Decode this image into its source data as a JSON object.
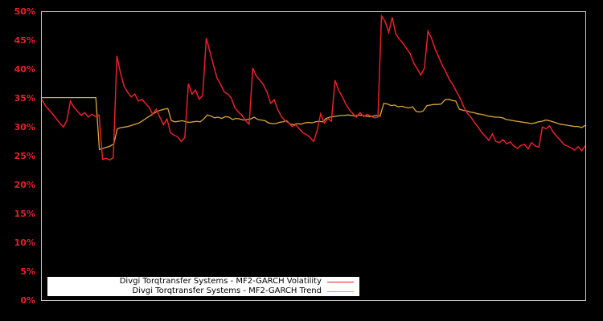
{
  "chart_data": {
    "type": "line",
    "title": "",
    "xlabel": "",
    "ylabel": "",
    "ylim": [
      0,
      50
    ],
    "yticks": [
      "0%",
      "5%",
      "10%",
      "15%",
      "20%",
      "25%",
      "30%",
      "35%",
      "40%",
      "45%",
      "50%"
    ],
    "grid": false,
    "legend_position": "lower-left",
    "colors": {
      "background": "#000000",
      "axis": "#c8c8c8",
      "tick_label": "#e8202a",
      "volatility": "#e8202a",
      "trend": "#d9a933"
    },
    "series": [
      {
        "name": "Divgi Torqtransfer Systems - MF2-GARCH Volatility",
        "color": "#e8202a",
        "values": [
          34.9,
          33.8,
          33.1,
          32.4,
          31.6,
          30.8,
          30.1,
          31.2,
          34.6,
          33.5,
          32.8,
          32.1,
          32.6,
          31.8,
          32.3,
          31.9,
          32.2,
          24.5,
          24.7,
          24.4,
          24.8,
          42.4,
          39.5,
          37.2,
          36.1,
          35.3,
          35.8,
          34.6,
          34.9,
          34.2,
          33.5,
          32.3,
          33.2,
          31.8,
          30.5,
          31.5,
          29.1,
          28.7,
          28.4,
          27.6,
          28.3,
          37.6,
          35.8,
          36.5,
          34.9,
          35.6,
          45.5,
          43.2,
          40.8,
          38.6,
          37.5,
          36.2,
          35.8,
          35.1,
          33.4,
          32.7,
          32.1,
          31.2,
          30.6,
          40.3,
          38.9,
          38.2,
          37.4,
          36.1,
          34.2,
          34.8,
          33.1,
          31.9,
          31.2,
          30.8,
          30.2,
          30.5,
          29.8,
          29.1,
          28.8,
          28.3,
          27.6,
          29.5,
          32.4,
          30.8,
          31.6,
          31.1,
          38.2,
          36.5,
          35.4,
          34.1,
          33.1,
          32.4,
          31.8,
          32.6,
          31.9,
          32.3,
          32.0,
          31.7,
          31.8,
          49.3,
          48.4,
          46.5,
          49.1,
          46.2,
          45.3,
          44.6,
          43.7,
          42.8,
          41.2,
          40.2,
          39.1,
          40.3,
          46.7,
          45.4,
          43.6,
          42.2,
          40.8,
          39.6,
          38.3,
          37.4,
          36.2,
          35.1,
          33.6,
          32.5,
          31.8,
          30.9,
          30.1,
          29.2,
          28.5,
          27.8,
          28.9,
          27.6,
          27.4,
          27.9,
          27.2,
          27.5,
          26.8,
          26.4,
          26.9,
          27.1,
          26.3,
          27.4,
          26.8,
          26.6,
          30.1,
          29.8,
          30.3,
          29.2,
          28.5,
          27.8,
          27.1,
          26.8,
          26.5,
          26.1,
          26.7,
          26.0,
          26.9
        ]
      },
      {
        "name": "Divgi Torqtransfer Systems - MF2-GARCH Trend",
        "color": "#d9a933",
        "values": [
          35.2,
          35.2,
          35.2,
          35.2,
          35.2,
          35.2,
          35.2,
          35.2,
          35.2,
          35.2,
          35.2,
          35.2,
          35.2,
          35.2,
          35.2,
          35.2,
          26.2,
          26.4,
          26.6,
          26.8,
          27.2,
          29.8,
          30.0,
          30.1,
          30.2,
          30.4,
          30.6,
          30.8,
          31.2,
          31.6,
          32.0,
          32.4,
          32.8,
          33.0,
          33.2,
          33.3,
          31.2,
          31.0,
          31.1,
          31.2,
          31.0,
          30.9,
          31.0,
          31.1,
          31.0,
          31.5,
          32.2,
          32.0,
          31.7,
          31.8,
          31.6,
          31.9,
          31.8,
          31.4,
          31.6,
          31.5,
          31.3,
          31.4,
          31.5,
          31.8,
          31.4,
          31.3,
          31.2,
          30.8,
          30.7,
          30.7,
          30.9,
          31.0,
          31.2,
          30.6,
          30.5,
          30.7,
          30.6,
          30.8,
          30.9,
          30.8,
          31.0,
          31.1,
          31.0,
          31.6,
          31.8,
          31.9,
          32.0,
          32.1,
          32.1,
          32.2,
          32.1,
          32.0,
          32.2,
          32.1,
          32.0,
          31.9,
          32.0,
          32.1,
          32.0,
          34.2,
          34.1,
          33.8,
          33.9,
          33.6,
          33.7,
          33.5,
          33.4,
          33.6,
          32.8,
          32.7,
          32.9,
          33.8,
          33.9,
          34.0,
          34.0,
          34.1,
          34.8,
          34.9,
          34.7,
          34.6,
          33.2,
          33.0,
          32.9,
          32.7,
          32.6,
          32.4,
          32.3,
          32.2,
          32.0,
          31.9,
          31.8,
          31.8,
          31.7,
          31.4,
          31.3,
          31.2,
          31.1,
          31.0,
          30.9,
          30.8,
          30.7,
          30.8,
          31.0,
          31.1,
          31.3,
          31.2,
          31.0,
          30.8,
          30.6,
          30.5,
          30.4,
          30.3,
          30.2,
          30.2,
          30.0,
          30.4
        ]
      }
    ]
  },
  "legend": {
    "items": [
      {
        "label": "Divgi Torqtransfer Systems - MF2-GARCH Volatility",
        "color": "#e8202a"
      },
      {
        "label": "Divgi Torqtransfer Systems - MF2-GARCH Trend",
        "color": "#d9a933"
      }
    ]
  }
}
